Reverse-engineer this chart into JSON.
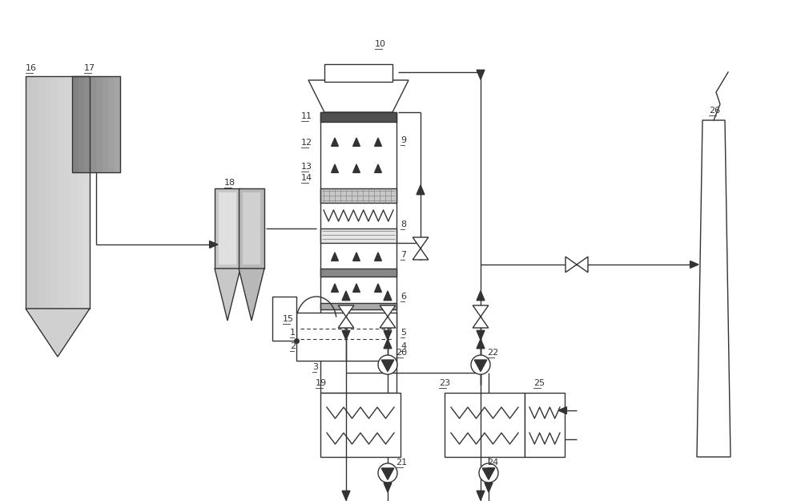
{
  "bg_color": "#ffffff",
  "lc": "#333333",
  "lw": 1.0,
  "fig_width": 10.0,
  "fig_height": 6.25
}
